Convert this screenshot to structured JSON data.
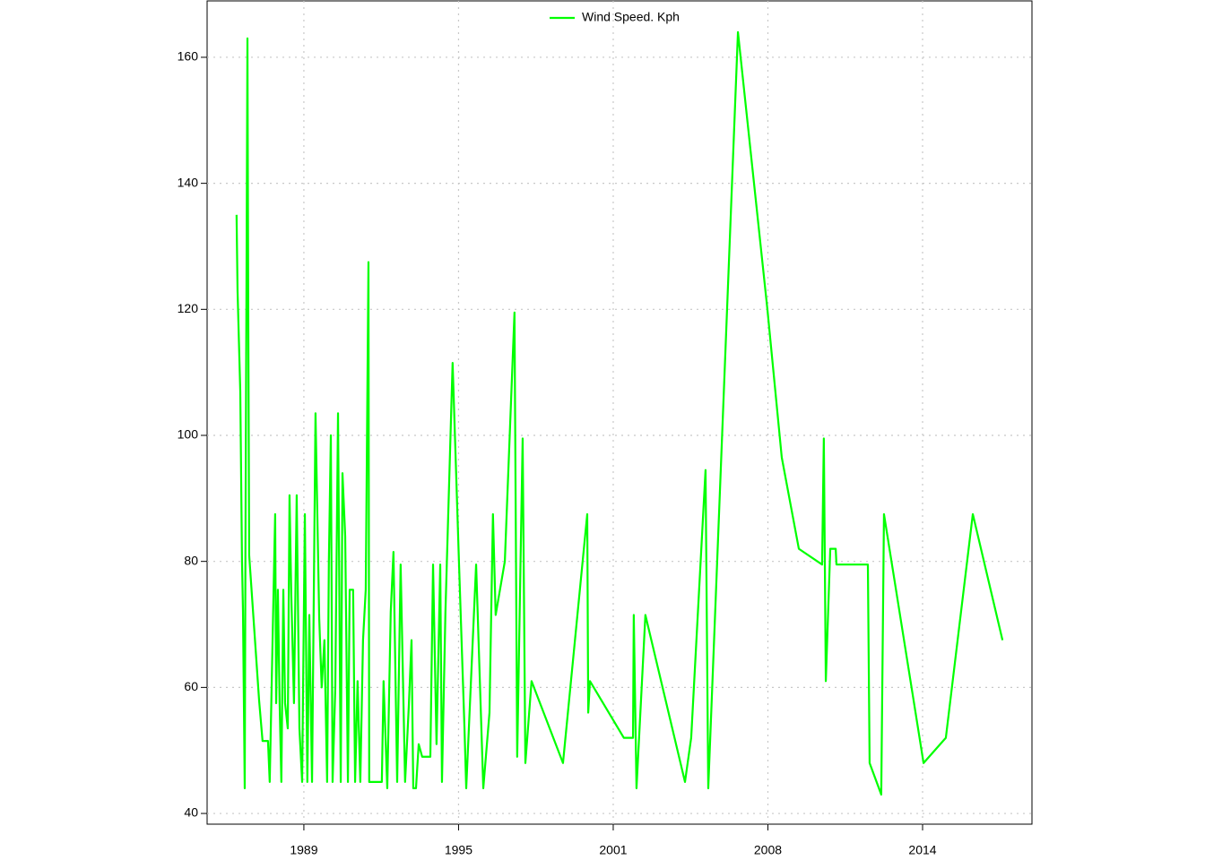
{
  "chart_data": {
    "type": "line",
    "x": [
      1986.28,
      1986.32,
      1986.43,
      1986.5,
      1986.54,
      1986.61,
      1986.64,
      1986.72,
      1986.75,
      1986.79,
      1987.19,
      1987.33,
      1987.55,
      1987.62,
      1987.8,
      1987.84,
      1987.88,
      1987.95,
      1988.02,
      1988.09,
      1988.17,
      1988.24,
      1988.35,
      1988.42,
      1988.49,
      1988.6,
      1988.71,
      1988.82,
      1988.93,
      1989.04,
      1989.14,
      1989.22,
      1989.33,
      1989.47,
      1989.62,
      1989.72,
      1989.83,
      1989.94,
      1990.01,
      1990.09,
      1990.16,
      1990.27,
      1990.38,
      1990.49,
      1990.56,
      1990.67,
      1990.78,
      1990.85,
      1990.99,
      1991.07,
      1991.17,
      1991.28,
      1991.39,
      1991.5,
      1991.61,
      1991.64,
      1992.15,
      1992.22,
      1992.37,
      1992.51,
      1992.62,
      1992.77,
      1992.91,
      1993.09,
      1993.24,
      1993.35,
      1993.42,
      1993.53,
      1993.64,
      1993.78,
      1994.11,
      1994.22,
      1994.36,
      1994.51,
      1994.58,
      1994.72,
      1995.01,
      1995.27,
      1995.49,
      1995.56,
      1995.96,
      1996.25,
      1996.5,
      1996.64,
      1996.75,
      1997.12,
      1997.51,
      1997.62,
      1997.84,
      1997.95,
      1998.2,
      1999.47,
      2000.45,
      2000.49,
      2000.56,
      2001.93,
      2002.3,
      2002.33,
      2002.44,
      2002.8,
      2004.4,
      2004.65,
      2005.23,
      2005.34,
      2006.54,
      2007.73,
      2008.31,
      2009.0,
      2009.94,
      2010.01,
      2010.09,
      2010.27,
      2010.49,
      2010.52,
      2011.79,
      2011.86,
      2012.33,
      2012.44,
      2014.04,
      2014.94,
      2016.03,
      2017.23
    ],
    "series": [
      {
        "name": "Wind Speed. Kph",
        "color": "#00ff00",
        "values": [
          135,
          123,
          107,
          80,
          72,
          44,
          83,
          163,
          123,
          81,
          58,
          51.5,
          51.5,
          45,
          80,
          87.5,
          57.5,
          75.5,
          57.5,
          45,
          75.5,
          57.5,
          53.5,
          90.5,
          75,
          57.5,
          90.5,
          53.5,
          45,
          87.5,
          45,
          71.5,
          45,
          103.5,
          71,
          60,
          67.5,
          45,
          80,
          100,
          45,
          60,
          103.5,
          45,
          94,
          84,
          45,
          75.5,
          75.5,
          45,
          61,
          45,
          67.5,
          75.5,
          127.5,
          45,
          45,
          61,
          44,
          72,
          81.5,
          45,
          79.5,
          45,
          57,
          67.5,
          44,
          44,
          51,
          49,
          49,
          79.5,
          51,
          79.5,
          45,
          72,
          111.5,
          79.5,
          53.5,
          44,
          79.5,
          44,
          56,
          87.5,
          71.5,
          80,
          119.5,
          49,
          99.5,
          48,
          61,
          48,
          87.5,
          56,
          61,
          52,
          52,
          71.5,
          44,
          71.5,
          45,
          52,
          94.5,
          44,
          164,
          120,
          96.5,
          82,
          79.5,
          99.5,
          61,
          82,
          82,
          79.5,
          79.5,
          48,
          43,
          87.5,
          48,
          52,
          87.5,
          67.5
        ]
      }
    ],
    "xlim": [
      1985.09,
      2018.42
    ],
    "xticks": [
      {
        "value": 1989,
        "label": "1989"
      },
      {
        "value": 1995.25,
        "label": "1995"
      },
      {
        "value": 2001.5,
        "label": "2001"
      },
      {
        "value": 2007.75,
        "label": "2008"
      },
      {
        "value": 2014,
        "label": "2014"
      }
    ],
    "ylim": [
      38.3,
      168.95
    ],
    "yticks": [
      40,
      60,
      80,
      100,
      120,
      140,
      160
    ],
    "grid": true,
    "legend": "top"
  }
}
